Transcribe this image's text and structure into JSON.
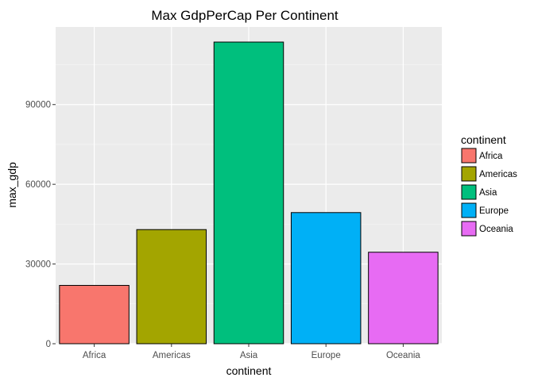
{
  "chart_data": {
    "type": "bar",
    "title": "Max GdpPerCap Per Continent",
    "xlabel": "continent",
    "ylabel": "max_gdp",
    "categories": [
      "Africa",
      "Americas",
      "Asia",
      "Europe",
      "Oceania"
    ],
    "values": [
      21951,
      42952,
      113523,
      49357,
      34435
    ],
    "colors": [
      "#F8766D",
      "#A3A500",
      "#00BF7D",
      "#00B0F6",
      "#E76BF3"
    ],
    "ylim": [
      0,
      119200
    ],
    "yticks": [
      0,
      30000,
      60000,
      90000
    ],
    "ytick_labels": [
      "0",
      "30000",
      "60000",
      "90000"
    ],
    "grid": true,
    "panel_background": "#EBEBEB",
    "legend": {
      "title": "continent",
      "placement": "right",
      "entries": [
        "Africa",
        "Americas",
        "Asia",
        "Europe",
        "Oceania"
      ]
    }
  }
}
